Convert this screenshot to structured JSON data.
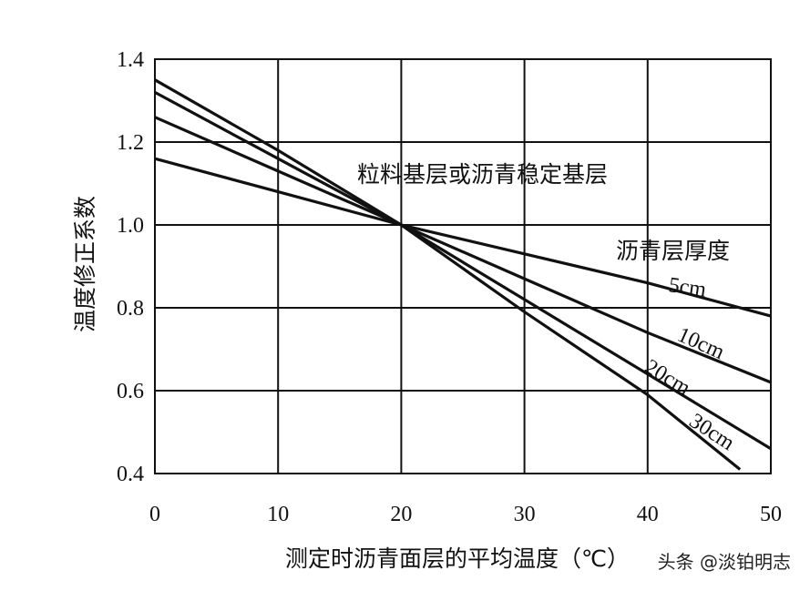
{
  "chart_data": {
    "type": "line",
    "xlabel": "测定时沥青面层的平均温度（℃）",
    "ylabel": "温度修正系数",
    "xlim": [
      0,
      50
    ],
    "ylim": [
      0.4,
      1.4
    ],
    "x_ticks": [
      0,
      10,
      20,
      30,
      40,
      50
    ],
    "y_ticks": [
      0.4,
      0.6,
      0.8,
      1.0,
      1.2,
      1.4
    ],
    "y_tick_labels": [
      "0.4",
      "0.6",
      "0.8",
      "1.0",
      "1.2",
      "1.4"
    ],
    "grid": true,
    "annotations": {
      "base_type": "粒料基层或沥青稳定基层",
      "thickness_title": "沥青层厚度"
    },
    "series": [
      {
        "name": "5cm",
        "x": [
          0,
          10,
          20,
          30,
          40,
          50
        ],
        "y": [
          1.16,
          1.08,
          1.0,
          0.93,
          0.86,
          0.78
        ]
      },
      {
        "name": "10cm",
        "x": [
          0,
          10,
          20,
          30,
          40,
          50
        ],
        "y": [
          1.26,
          1.13,
          1.0,
          0.87,
          0.74,
          0.62
        ]
      },
      {
        "name": "20cm",
        "x": [
          0,
          10,
          20,
          30,
          40,
          50
        ],
        "y": [
          1.32,
          1.16,
          1.0,
          0.82,
          0.64,
          0.46
        ]
      },
      {
        "name": "30cm",
        "x": [
          0,
          10,
          20,
          30,
          40,
          47.5
        ],
        "y": [
          1.35,
          1.18,
          1.0,
          0.79,
          0.59,
          0.41
        ]
      }
    ]
  },
  "watermark": "头条 @淡铂明志"
}
